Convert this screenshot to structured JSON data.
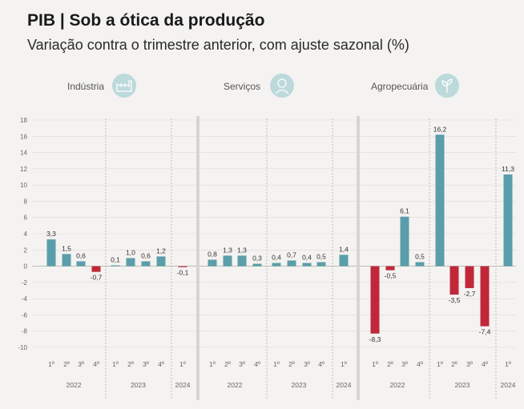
{
  "header": {
    "title": "PIB | Sob a ótica da produção",
    "subtitle": "Variação contra o trimestre anterior, com ajuste sazonal (%)"
  },
  "colors": {
    "positive": "#5b9eab",
    "negative": "#c0283a",
    "grid": "#dcdbd8",
    "separator": "#d6d5d2"
  },
  "icons": [
    "factory-icon",
    "person-icon",
    "plant-icon"
  ],
  "chart_data": {
    "type": "bar",
    "ylim": [
      -10,
      18
    ],
    "yticks": [
      -10,
      -8,
      -6,
      -4,
      -2,
      0,
      2,
      4,
      6,
      8,
      10,
      12,
      14,
      16,
      18
    ],
    "quarter_labels": [
      "1º",
      "2º",
      "3º",
      "4º"
    ],
    "years": [
      "2022",
      "2023",
      "2024"
    ],
    "panels": [
      {
        "name": "Indústria",
        "values": [
          3.3,
          1.5,
          0.6,
          -0.7,
          0.1,
          1.0,
          0.6,
          1.2,
          -0.1
        ],
        "labels": [
          "3,3",
          "1,5",
          "0,6",
          "-0,7",
          "0,1",
          "1,0",
          "0,6",
          "1,2",
          "-0,1"
        ]
      },
      {
        "name": "Serviços",
        "values": [
          0.8,
          1.3,
          1.3,
          0.3,
          0.4,
          0.7,
          0.4,
          0.5,
          1.4
        ],
        "labels": [
          "0,8",
          "1,3",
          "1,3",
          "0,3",
          "0,4",
          "0,7",
          "0,4",
          "0,5",
          "1,4"
        ]
      },
      {
        "name": "Agropecuária",
        "values": [
          -8.3,
          -0.5,
          6.1,
          0.5,
          16.2,
          -3.5,
          -2.7,
          -7.4,
          11.3
        ],
        "labels": [
          "-8,3",
          "-0,5",
          "6,1",
          "0,5",
          "16,2",
          "-3,5",
          "-2,7",
          "-7,4",
          "11,3"
        ]
      }
    ]
  }
}
